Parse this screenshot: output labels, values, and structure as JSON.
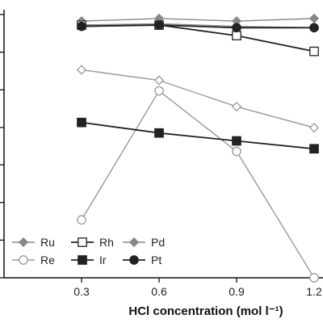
{
  "chart_data": {
    "type": "line",
    "xlabel": "HCl concentration (mol l⁻¹)",
    "x": [
      0.3,
      0.6,
      0.9,
      1.2
    ],
    "x_tick_labels": [
      "0.3",
      "0.6",
      "0.9",
      "1.2"
    ],
    "xlim": [
      0.0,
      1.2
    ],
    "ylim": [
      0,
      100
    ],
    "y_ticks": [
      0,
      14.3,
      28.6,
      42.9,
      57.1,
      71.4,
      85.7,
      100
    ],
    "grid": false,
    "legend_position": "bottom-left",
    "legend_columns": 3,
    "series": [
      {
        "name": "Ru",
        "values": [
          97.5,
          98.5,
          97.5,
          98.5
        ],
        "color": "#888888",
        "marker": "diamond-filled"
      },
      {
        "name": "Rh",
        "values": [
          96,
          96,
          92,
          86
        ],
        "color": "#222222",
        "marker": "square-open"
      },
      {
        "name": "Pd",
        "values": [
          96,
          96.5,
          95.5,
          95
        ],
        "color": "#888888",
        "marker": "diamond-filled"
      },
      {
        "name": "Re",
        "values": [
          22,
          71,
          48,
          0
        ],
        "color": "#999999",
        "marker": "circle-open"
      },
      {
        "name": "Ir",
        "values": [
          59,
          55,
          52,
          49
        ],
        "color": "#222222",
        "marker": "square-filled"
      },
      {
        "name": "Pt",
        "values": [
          95.5,
          96,
          95,
          95
        ],
        "color": "#222222",
        "marker": "circle-filled"
      },
      {
        "name": "",
        "values": [
          79,
          75,
          65,
          57
        ],
        "color": "#999999",
        "marker": "diamond-open"
      }
    ]
  }
}
